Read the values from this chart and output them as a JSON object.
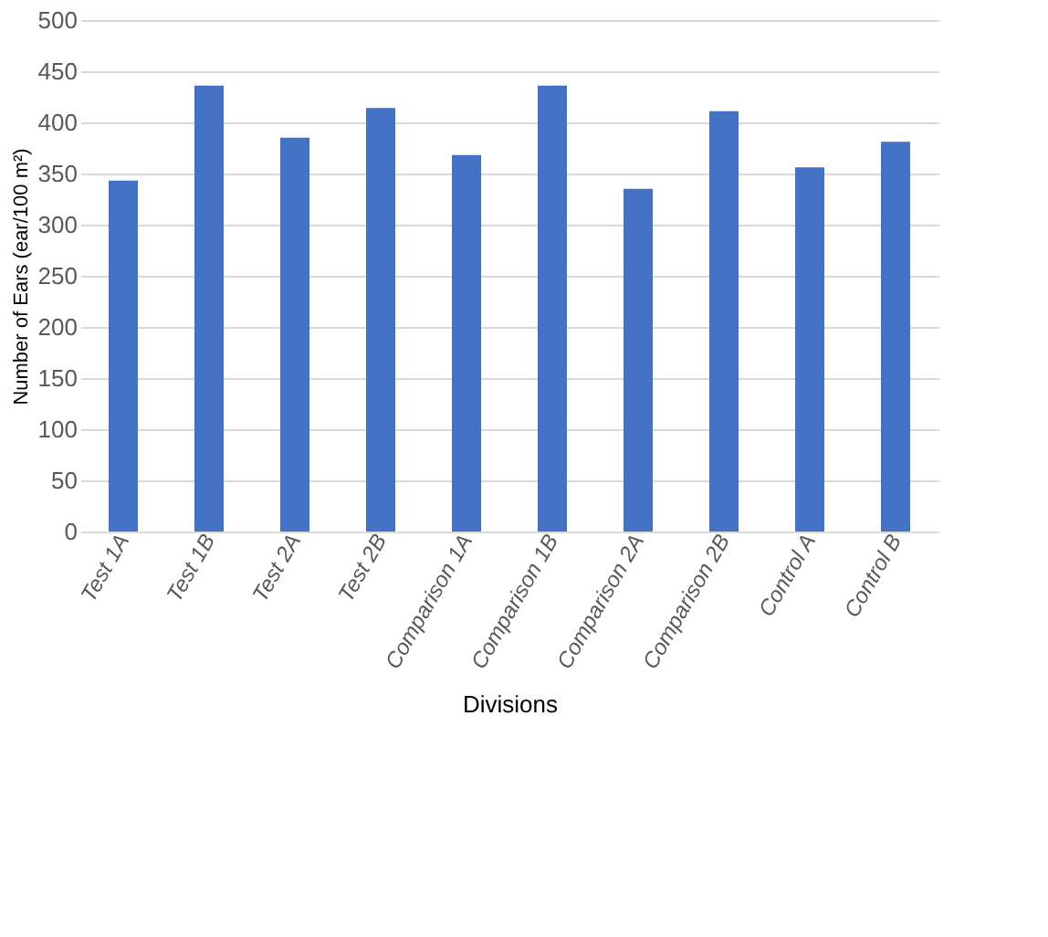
{
  "chart_data": {
    "type": "bar",
    "xlabel": "Divisions",
    "ylabel": "Number of Ears (ear/100 m²)",
    "categories": [
      "Test 1A",
      "Test 1B",
      "Test 2A",
      "Test 2B",
      "Comparison 1A",
      "Comparison 1B",
      "Comparison 2A",
      "Comparison 2B",
      "Control A",
      "Control B"
    ],
    "values": [
      343,
      436,
      385,
      414,
      368,
      436,
      335,
      411,
      356,
      381
    ],
    "color": "#4472c4",
    "ylim": [
      0,
      500
    ],
    "yticks": [
      0,
      50,
      100,
      150,
      200,
      250,
      300,
      350,
      400,
      450,
      500
    ],
    "grid": "y"
  }
}
